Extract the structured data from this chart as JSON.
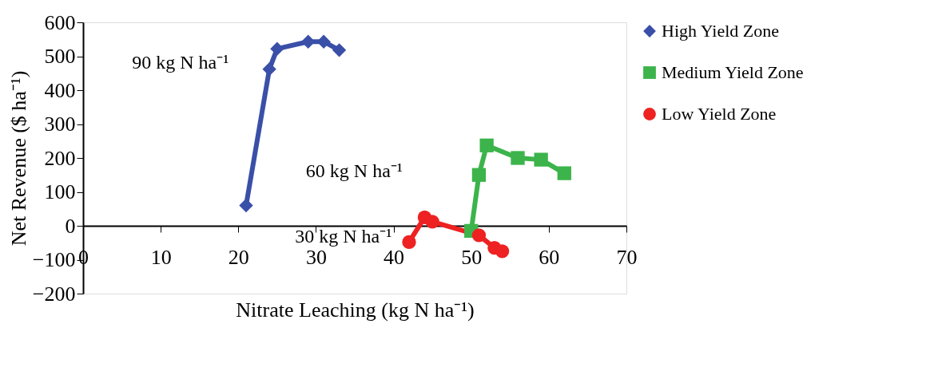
{
  "chart_data": {
    "type": "line",
    "xlabel": "Nitrate Leaching (kg N ha⁻¹)",
    "ylabel": "Net Revenue ($ ha⁻¹)",
    "xlim": [
      0,
      70
    ],
    "xticks": [
      0,
      10,
      20,
      30,
      40,
      50,
      60,
      70
    ],
    "ylim": [
      -200,
      600
    ],
    "yticks": [
      -200,
      -100,
      0,
      100,
      200,
      300,
      400,
      500,
      600
    ],
    "grid": false,
    "legend": "right",
    "series": [
      {
        "name": "High Yield Zone",
        "color": "#3a4fa8",
        "marker": "diamond",
        "x": [
          21,
          24,
          25,
          29,
          31,
          33
        ],
        "values": [
          60,
          462,
          522,
          543,
          543,
          518
        ]
      },
      {
        "name": "Medium Yield Zone",
        "color": "#3cb44b",
        "marker": "square",
        "x": [
          50,
          51,
          52,
          56,
          59,
          62
        ],
        "values": [
          -15,
          150,
          237,
          200,
          195,
          155
        ]
      },
      {
        "name": "Low Yield Zone",
        "color": "#ee2222",
        "marker": "circle",
        "x": [
          42,
          44,
          45,
          51,
          53,
          54
        ],
        "values": [
          -48,
          25,
          12,
          -28,
          -65,
          -75
        ]
      }
    ],
    "annotations": [
      "90 kg N ha⁻¹",
      "60 kg N ha⁻¹",
      "30 kg N ha⁻¹"
    ]
  }
}
